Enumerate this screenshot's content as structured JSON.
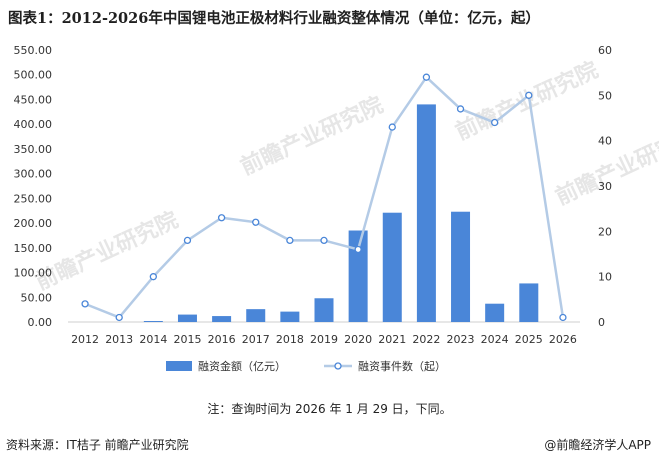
{
  "title": "图表1：2012-2026年中国锂电池正极材料行业融资整体情况（单位：亿元，起）",
  "note": "注：查询时间为 2026 年 1 月 29 日，下同。",
  "source": "资料来源：IT桔子 前瞻产业研究院",
  "brand": "@前瞻经济学人APP",
  "watermark": "前瞻产业研究院",
  "colors": {
    "bar": "#4a86d8",
    "line": "#b4cbe6",
    "marker": "#4a86d8"
  },
  "chart_data": {
    "type": "bar",
    "categories": [
      "2012",
      "2013",
      "2014",
      "2015",
      "2016",
      "2017",
      "2018",
      "2019",
      "2020",
      "2021",
      "2022",
      "2023",
      "2024",
      "2025",
      "2026"
    ],
    "series": [
      {
        "name": "融资金额（亿元）",
        "type": "bar",
        "axis": "left",
        "values": [
          0,
          0,
          2,
          15,
          12,
          26,
          21,
          48,
          185,
          221,
          440,
          223,
          37,
          78,
          0
        ]
      },
      {
        "name": "融资事件数（起）",
        "type": "line",
        "axis": "right",
        "values": [
          4,
          1,
          10,
          18,
          23,
          22,
          18,
          18,
          16,
          43,
          54,
          47,
          44,
          50,
          1
        ]
      }
    ],
    "ylim_left": [
      0,
      550
    ],
    "yticks_left": [
      "0.00",
      "50.00",
      "100.00",
      "150.00",
      "200.00",
      "250.00",
      "300.00",
      "350.00",
      "400.00",
      "450.00",
      "500.00",
      "550.00"
    ],
    "ylim_right": [
      0,
      60
    ],
    "yticks_right": [
      "0",
      "10",
      "20",
      "30",
      "40",
      "50",
      "60"
    ],
    "grid": false,
    "legend": "bottom"
  }
}
